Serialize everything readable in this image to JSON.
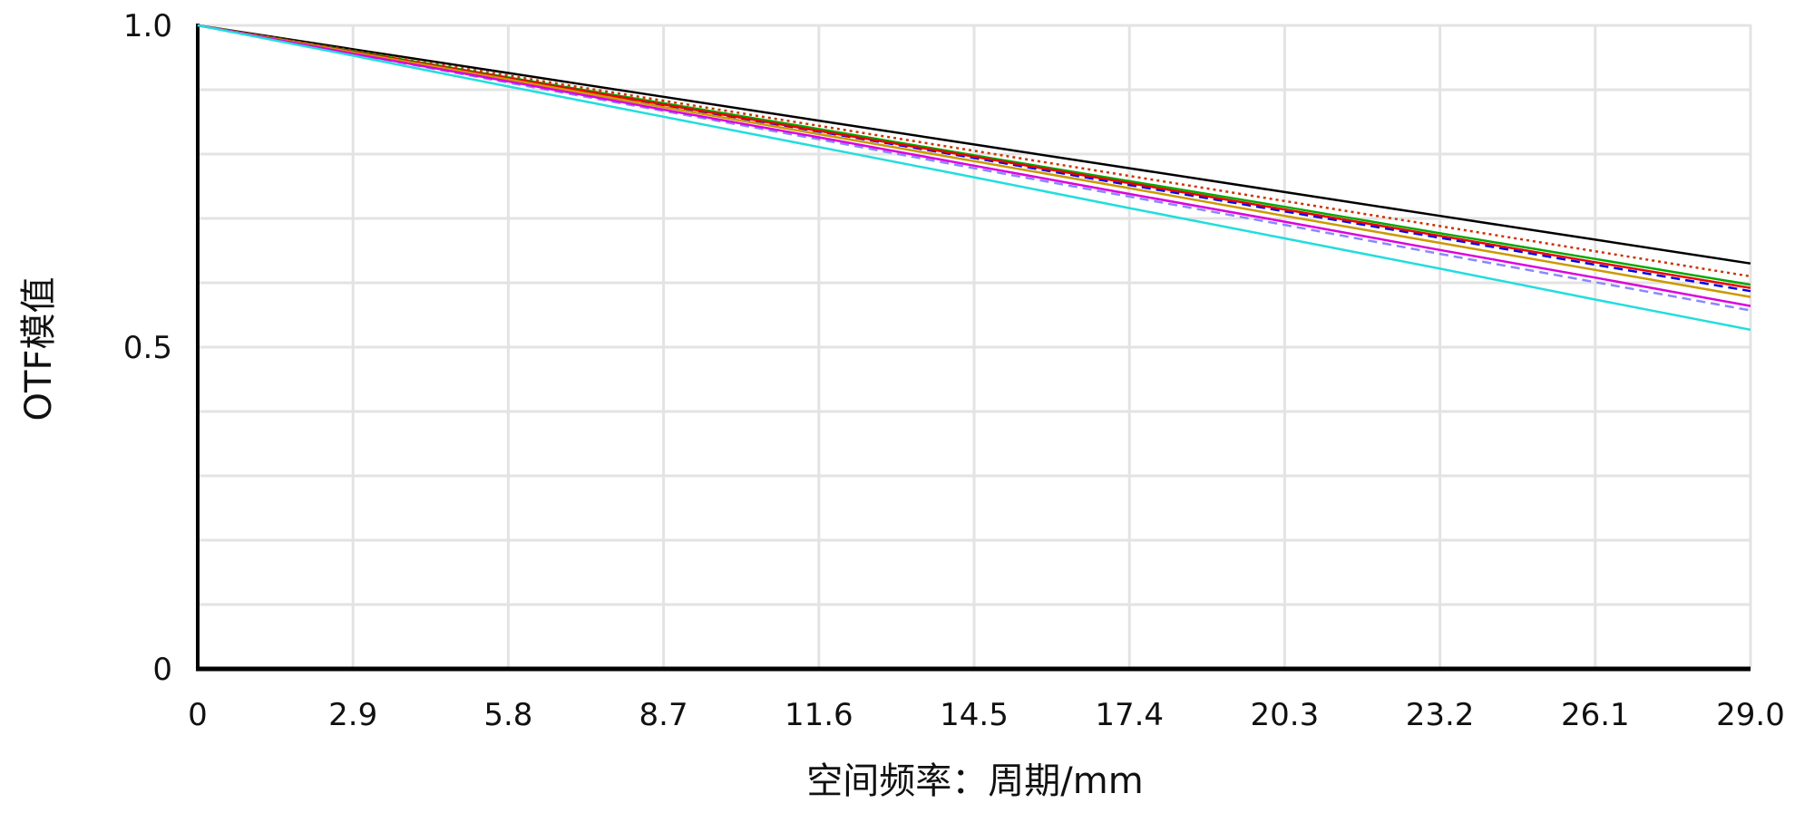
{
  "chart_data": {
    "type": "line",
    "xlabel": "空间频率：周期/mm",
    "ylabel": "OTF模值",
    "xlim": [
      0,
      29.0
    ],
    "ylim": [
      0,
      1.0
    ],
    "x_ticks": [
      "0",
      "2.9",
      "5.8",
      "8.7",
      "11.6",
      "14.5",
      "17.4",
      "20.3",
      "23.2",
      "26.1",
      "29.0"
    ],
    "y_ticks": [
      "0",
      "0.5",
      "1.0"
    ],
    "grid": true,
    "x": [
      0,
      2.9,
      5.8,
      8.7,
      11.6,
      14.5,
      17.4,
      20.3,
      23.2,
      26.1,
      29.0
    ],
    "series": [
      {
        "color": "#000000",
        "style": "solid",
        "values": [
          1.0,
          0.963,
          0.926,
          0.889,
          0.852,
          0.815,
          0.778,
          0.741,
          0.704,
          0.667,
          0.63
        ]
      },
      {
        "color": "#cc3300",
        "style": "dotted",
        "values": [
          1.0,
          0.961,
          0.922,
          0.883,
          0.844,
          0.805,
          0.766,
          0.727,
          0.688,
          0.649,
          0.61
        ]
      },
      {
        "color": "#00aa00",
        "style": "solid",
        "values": [
          1.0,
          0.96,
          0.919,
          0.879,
          0.839,
          0.798,
          0.758,
          0.718,
          0.677,
          0.637,
          0.597
        ]
      },
      {
        "color": "#0000ee",
        "style": "dashed",
        "values": [
          1.0,
          0.959,
          0.917,
          0.876,
          0.835,
          0.794,
          0.752,
          0.711,
          0.67,
          0.628,
          0.587
        ]
      },
      {
        "color": "#ee0000",
        "style": "solid",
        "values": [
          1.0,
          0.959,
          0.918,
          0.877,
          0.836,
          0.796,
          0.755,
          0.714,
          0.673,
          0.632,
          0.592
        ]
      },
      {
        "color": "#cc9900",
        "style": "solid",
        "values": [
          1.0,
          0.958,
          0.916,
          0.873,
          0.831,
          0.789,
          0.747,
          0.704,
          0.662,
          0.62,
          0.578
        ]
      },
      {
        "color": "#8888ff",
        "style": "dashed",
        "values": [
          1.0,
          0.956,
          0.911,
          0.867,
          0.823,
          0.778,
          0.734,
          0.69,
          0.645,
          0.601,
          0.557
        ]
      },
      {
        "color": "#dd00dd",
        "style": "solid",
        "values": [
          1.0,
          0.956,
          0.913,
          0.869,
          0.826,
          0.782,
          0.738,
          0.695,
          0.651,
          0.608,
          0.564
        ]
      },
      {
        "color": "#22dddd",
        "style": "solid",
        "values": [
          1.0,
          0.953,
          0.905,
          0.858,
          0.811,
          0.764,
          0.716,
          0.669,
          0.622,
          0.574,
          0.527
        ]
      }
    ]
  }
}
